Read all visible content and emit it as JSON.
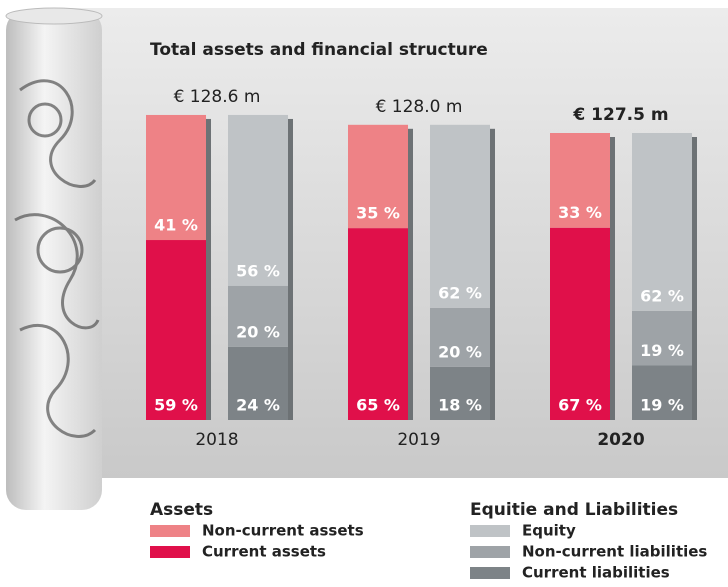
{
  "chart_data": {
    "type": "stacked_bar",
    "title": "Total assets and financial structure",
    "categories": [
      "2018",
      "2019",
      "2020"
    ],
    "totals": [
      128.6,
      128.0,
      127.5
    ],
    "total_labels": [
      "€ 128.6 m",
      "€ 128.0 m",
      "€ 127.5 m"
    ],
    "groups": [
      {
        "name": "Assets",
        "series": [
          {
            "name": "Non-current assets",
            "color": "#ee8286",
            "values": [
              41,
              35,
              33
            ],
            "value_labels": [
              "41 %",
              "35 %",
              "33 %"
            ]
          },
          {
            "name": "Current assets",
            "color": "#e0104a",
            "values": [
              59,
              65,
              67
            ],
            "value_labels": [
              "59 %",
              "65 %",
              "67 %"
            ]
          }
        ]
      },
      {
        "name": "Equitie and Liabilities",
        "series": [
          {
            "name": "Equity",
            "color": "#bfc3c6",
            "values": [
              56,
              62,
              62
            ],
            "value_labels": [
              "56 %",
              "62 %",
              "62 %"
            ]
          },
          {
            "name": "Non-current liabilities",
            "color": "#9ea3a7",
            "values": [
              20,
              20,
              19
            ],
            "value_labels": [
              "20 %",
              "20 %",
              "19 %"
            ]
          },
          {
            "name": "Current liabilities",
            "color": "#7d8387",
            "values": [
              24,
              18,
              19
            ],
            "value_labels": [
              "24 %",
              "18 %",
              "19 %"
            ]
          }
        ]
      }
    ]
  }
}
